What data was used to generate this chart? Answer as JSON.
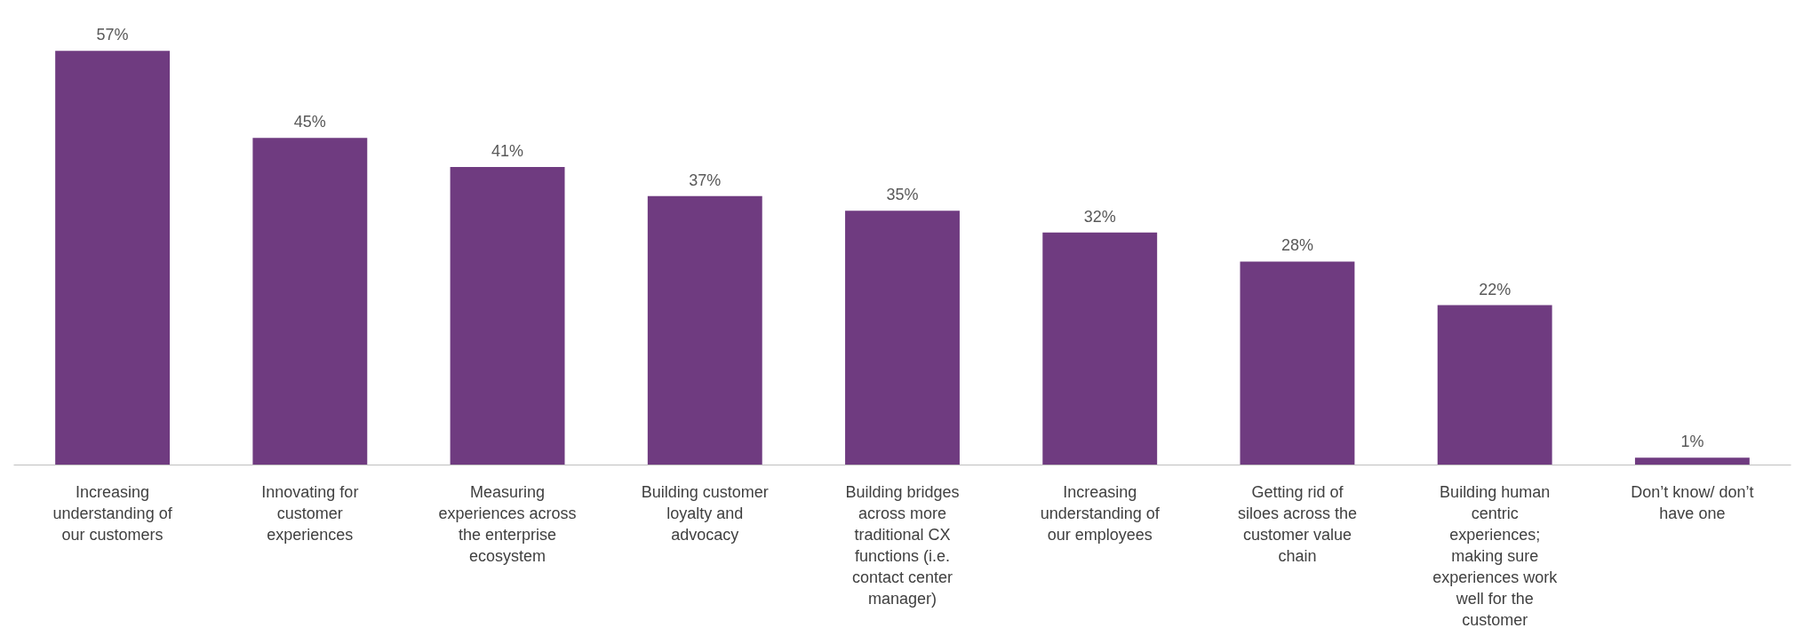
{
  "chart_data": {
    "type": "bar",
    "categories": [
      "Increasing understanding of our customers",
      "Innovating for customer experiences",
      "Measuring experiences across the enterprise ecosystem",
      "Building customer loyalty and advocacy",
      "Building bridges across more traditional CX functions (i.e. contact center manager)",
      "Increasing understanding of our employees",
      "Getting rid of siloes across the customer value chain",
      "Building human centric experiences; making sure experiences work well for the customer",
      "Don’t know/ don’t have one"
    ],
    "values": [
      57,
      45,
      41,
      37,
      35,
      32,
      28,
      22,
      1
    ],
    "value_labels": [
      "57%",
      "45%",
      "41%",
      "37%",
      "35%",
      "32%",
      "28%",
      "22%",
      "1%"
    ],
    "color": "#6f3b80",
    "grid": false
  }
}
